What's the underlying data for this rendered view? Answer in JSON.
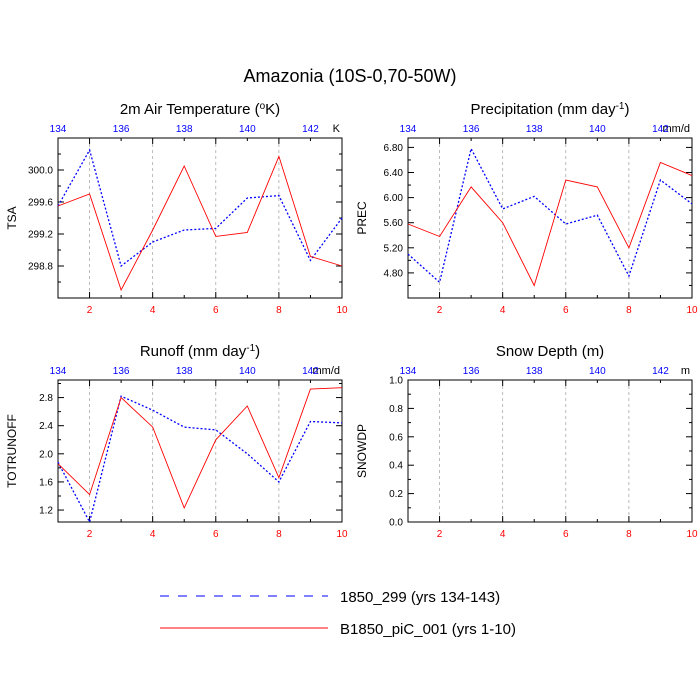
{
  "figure_title": "Amazonia (10S-0,70-50W)",
  "colors": {
    "series_a": "#0000ff",
    "series_b": "#ff0000",
    "top_ticks": "#0000ff",
    "bottom_ticks": "#ff0000",
    "axis": "#000000",
    "grid": "#aaaaaa"
  },
  "legend": [
    {
      "label": "1850_299 (yrs 134-143)",
      "style": "dashed-blue"
    },
    {
      "label": "B1850_piC_001 (yrs 1-10)",
      "style": "solid-red"
    }
  ],
  "chart_data": [
    {
      "id": "tsa",
      "type": "line",
      "title": "2m Air Temperature (",
      "title_sup": "o",
      "title_after": "K)",
      "units": "K",
      "ylabel": "TSA",
      "x": [
        1,
        2,
        3,
        4,
        5,
        6,
        7,
        8,
        9,
        10
      ],
      "xlim": [
        1,
        10
      ],
      "ylim": [
        298.4,
        300.4
      ],
      "bottom_ticks": [
        "2",
        "4",
        "6",
        "8",
        "10"
      ],
      "top_ticks": [
        "134",
        "136",
        "138",
        "140",
        "142"
      ],
      "yticks": [
        {
          "v": 298.8,
          "label": "298.8"
        },
        {
          "v": 299.2,
          "label": "299.2"
        },
        {
          "v": 299.6,
          "label": "299.6"
        },
        {
          "v": 300.0,
          "label": "300.0"
        }
      ],
      "series": [
        {
          "name": "1850_299 (yrs 134-143)",
          "values": [
            299.55,
            300.25,
            298.8,
            299.1,
            299.25,
            299.27,
            299.65,
            299.68,
            298.87,
            299.4
          ]
        },
        {
          "name": "B1850_piC_001 (yrs 1-10)",
          "values": [
            299.55,
            299.7,
            298.5,
            299.25,
            300.05,
            299.17,
            299.22,
            300.17,
            298.92,
            298.8
          ]
        }
      ]
    },
    {
      "id": "prec",
      "type": "line",
      "title": "Precipitation (mm day",
      "title_sup": "-1",
      "title_after": ")",
      "units": "mm/d",
      "ylabel": "PREC",
      "x": [
        1,
        2,
        3,
        4,
        5,
        6,
        7,
        8,
        9,
        10
      ],
      "xlim": [
        1,
        10
      ],
      "ylim": [
        4.4,
        6.95
      ],
      "bottom_ticks": [
        "2",
        "4",
        "6",
        "8",
        "10"
      ],
      "top_ticks": [
        "134",
        "136",
        "138",
        "140",
        "142"
      ],
      "yticks": [
        {
          "v": 4.8,
          "label": "4.80"
        },
        {
          "v": 5.2,
          "label": "5.20"
        },
        {
          "v": 5.6,
          "label": "5.60"
        },
        {
          "v": 6.0,
          "label": "6.00"
        },
        {
          "v": 6.4,
          "label": "6.40"
        },
        {
          "v": 6.8,
          "label": "6.80"
        }
      ],
      "series": [
        {
          "name": "1850_299 (yrs 134-143)",
          "values": [
            5.1,
            4.65,
            6.78,
            5.82,
            6.02,
            5.58,
            5.72,
            4.75,
            6.28,
            5.9
          ]
        },
        {
          "name": "B1850_piC_001 (yrs 1-10)",
          "values": [
            5.58,
            5.38,
            6.17,
            5.6,
            4.6,
            6.28,
            6.17,
            5.2,
            6.56,
            6.35
          ]
        }
      ]
    },
    {
      "id": "totrunoff",
      "type": "line",
      "title": "Runoff (mm day",
      "title_sup": "-1",
      "title_after": ")",
      "units": "mm/d",
      "ylabel": "TOTRUNOFF",
      "x": [
        1,
        2,
        3,
        4,
        5,
        6,
        7,
        8,
        9,
        10
      ],
      "xlim": [
        1,
        10
      ],
      "ylim": [
        1.03,
        3.05
      ],
      "bottom_ticks": [
        "2",
        "4",
        "6",
        "8",
        "10"
      ],
      "top_ticks": [
        "134",
        "136",
        "138",
        "140",
        "142"
      ],
      "yticks": [
        {
          "v": 1.2,
          "label": "1.2"
        },
        {
          "v": 1.6,
          "label": "1.6"
        },
        {
          "v": 2.0,
          "label": "2.0"
        },
        {
          "v": 2.4,
          "label": "2.4"
        },
        {
          "v": 2.8,
          "label": "2.8"
        }
      ],
      "series": [
        {
          "name": "1850_299 (yrs 134-143)",
          "values": [
            1.88,
            1.03,
            2.82,
            2.62,
            2.38,
            2.34,
            2.0,
            1.6,
            2.46,
            2.44
          ]
        },
        {
          "name": "B1850_piC_001 (yrs 1-10)",
          "values": [
            1.86,
            1.42,
            2.8,
            2.38,
            1.23,
            2.2,
            2.68,
            1.66,
            2.92,
            2.94
          ]
        }
      ]
    },
    {
      "id": "snowdp",
      "type": "line",
      "title": "Snow Depth (m)",
      "title_sup": "",
      "title_after": "",
      "units": "m",
      "ylabel": "SNOWDP",
      "x": [
        1,
        2,
        3,
        4,
        5,
        6,
        7,
        8,
        9,
        10
      ],
      "xlim": [
        1,
        10
      ],
      "ylim": [
        0.0,
        1.0
      ],
      "bottom_ticks": [
        "2",
        "4",
        "6",
        "8",
        "10"
      ],
      "top_ticks": [
        "134",
        "136",
        "138",
        "140",
        "142"
      ],
      "yticks": [
        {
          "v": 0.0,
          "label": "0.0"
        },
        {
          "v": 0.2,
          "label": "0.2"
        },
        {
          "v": 0.4,
          "label": "0.4"
        },
        {
          "v": 0.6,
          "label": "0.6"
        },
        {
          "v": 0.8,
          "label": "0.8"
        },
        {
          "v": 1.0,
          "label": "1.0"
        }
      ],
      "series": []
    }
  ]
}
